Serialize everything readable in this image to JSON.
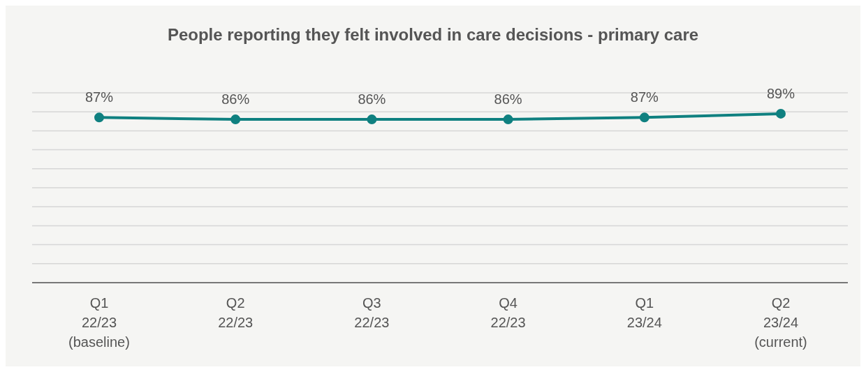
{
  "chart_data": {
    "type": "line",
    "title": "People reporting they felt involved in care decisions - primary care",
    "categories": [
      "Q1\n22/23\n(baseline)",
      "Q2\n22/23",
      "Q3\n22/23",
      "Q4\n22/23",
      "Q1\n23/24",
      "Q2\n23/24\n(current)"
    ],
    "values": [
      87,
      86,
      86,
      86,
      87,
      89
    ],
    "value_labels": [
      "87%",
      "86%",
      "86%",
      "86%",
      "87%",
      "89%"
    ],
    "color": "#0f8080",
    "ylim": [
      0,
      100
    ],
    "yticks": [
      {
        "value": 0,
        "label": null
      },
      {
        "value": 10,
        "label": null
      },
      {
        "value": 20,
        "label": null
      },
      {
        "value": 30,
        "label": null
      },
      {
        "value": 40,
        "label": null
      },
      {
        "value": 50,
        "label": null
      },
      {
        "value": 60,
        "label": null
      },
      {
        "value": 70,
        "label": null
      },
      {
        "value": 80,
        "label": null
      },
      {
        "value": 90,
        "label": null
      },
      {
        "value": 100,
        "label": null
      }
    ],
    "grid": "y",
    "marker": "circle",
    "line_style": "solid"
  }
}
